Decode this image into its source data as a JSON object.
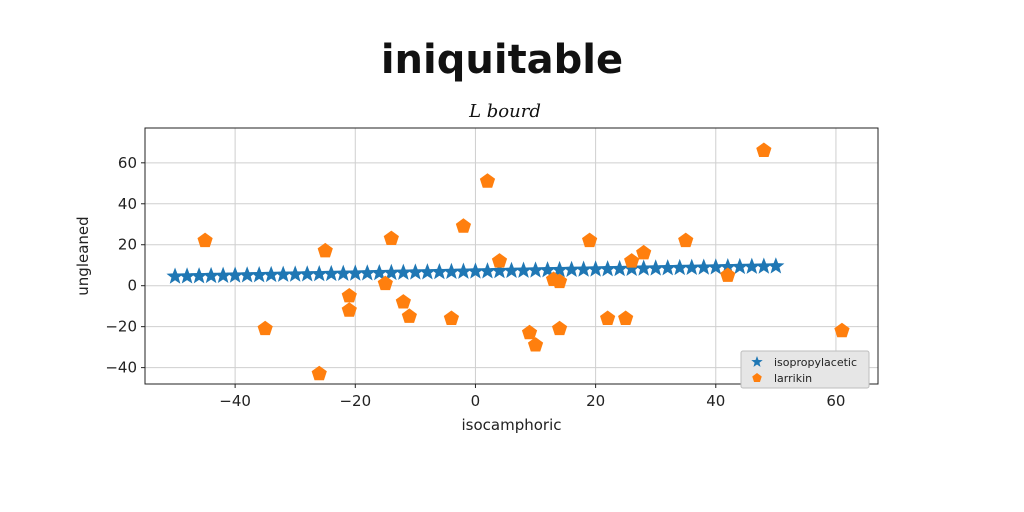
{
  "chart_data": {
    "type": "scatter",
    "title": "iniquitable",
    "subtitle": "L bourd",
    "xlabel": "isocamphoric",
    "ylabel": "ungleaned",
    "xlim": [
      -55,
      67
    ],
    "ylim": [
      -48,
      77
    ],
    "xticks": [
      -40,
      -20,
      0,
      20,
      40,
      60
    ],
    "yticks": [
      -40,
      -20,
      0,
      20,
      40,
      60
    ],
    "grid": true,
    "legend_position": "bottom-right",
    "series": [
      {
        "name": "isopropylacetic",
        "marker": "star",
        "color": "#1f77b4",
        "x": [
          -50,
          -48,
          -46,
          -44,
          -42,
          -40,
          -38,
          -36,
          -34,
          -32,
          -30,
          -28,
          -26,
          -24,
          -22,
          -20,
          -18,
          -16,
          -14,
          -12,
          -10,
          -8,
          -6,
          -4,
          -2,
          0,
          2,
          4,
          6,
          8,
          10,
          12,
          14,
          16,
          18,
          20,
          22,
          24,
          26,
          28,
          30,
          32,
          34,
          36,
          38,
          40,
          42,
          44,
          46,
          48,
          50
        ],
        "y": [
          4.5,
          4.6,
          4.7,
          4.8,
          4.9,
          5.0,
          5.1,
          5.2,
          5.3,
          5.4,
          5.5,
          5.6,
          5.7,
          5.8,
          5.9,
          6.0,
          6.1,
          6.2,
          6.3,
          6.4,
          6.5,
          6.6,
          6.7,
          6.8,
          6.9,
          7.0,
          7.1,
          7.2,
          7.3,
          7.4,
          7.5,
          7.6,
          7.7,
          7.8,
          7.9,
          8.0,
          8.1,
          8.2,
          8.3,
          8.4,
          8.5,
          8.6,
          8.7,
          8.8,
          8.9,
          9.0,
          9.1,
          9.2,
          9.3,
          9.4,
          9.5
        ]
      },
      {
        "name": "larrikin",
        "marker": "pentagon",
        "color": "#ff7f0e",
        "x": [
          -45,
          -35,
          -26,
          -25,
          -21,
          -21,
          -14,
          -15,
          -12,
          -11,
          -4,
          -2,
          2,
          4,
          9,
          10,
          13,
          14,
          14,
          19,
          22,
          25,
          26,
          28,
          35,
          42,
          48,
          61
        ],
        "y": [
          22,
          -21,
          -43,
          17,
          -5,
          -12,
          23,
          1,
          -8,
          -15,
          -16,
          29,
          51,
          12,
          -23,
          -29,
          3,
          2,
          -21,
          22,
          -16,
          -16,
          12,
          16,
          22,
          5,
          66,
          -22
        ]
      }
    ]
  }
}
